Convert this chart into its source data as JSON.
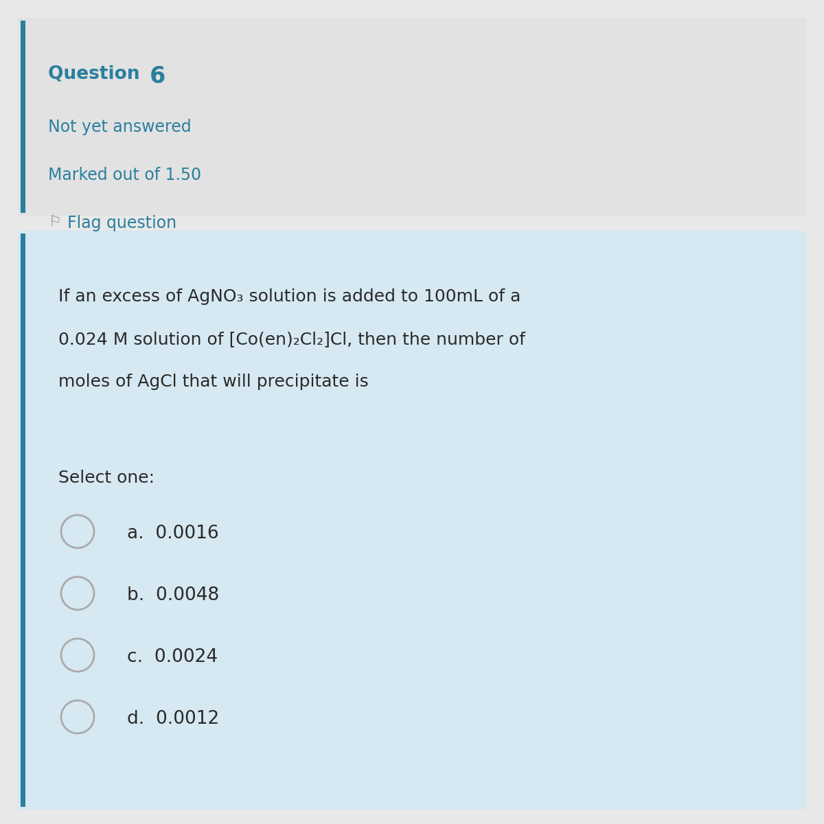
{
  "bg_color": "#e8e8e8",
  "top_box_bg": "#e0e0e0",
  "bottom_box_bg": "#d6e8f2",
  "teal_color": "#2a7f9e",
  "text_color": "#3a3a3a",
  "dark_text": "#2a2a2a",
  "left_accent_color": "#2a7f9e",
  "question_label": "Question ",
  "question_number": "6",
  "not_answered": "Not yet answered",
  "marked_out": "Marked out of 1.50",
  "flag_text": "Flag question",
  "line1": "If an excess of AgNO₃ solution is added to 100mL of a",
  "line2": "0.024 M solution of [Co(en)₂Cl₂]Cl, then the number of",
  "line3": "moles of AgCl that will precipitate is",
  "select_one": "Select one:",
  "options": [
    "a.  0.0016",
    "b.  0.0048",
    "c.  0.0024",
    "d.  0.0012"
  ],
  "fs_question": 19,
  "fs_body": 18,
  "fs_options": 19,
  "fs_meta": 17
}
